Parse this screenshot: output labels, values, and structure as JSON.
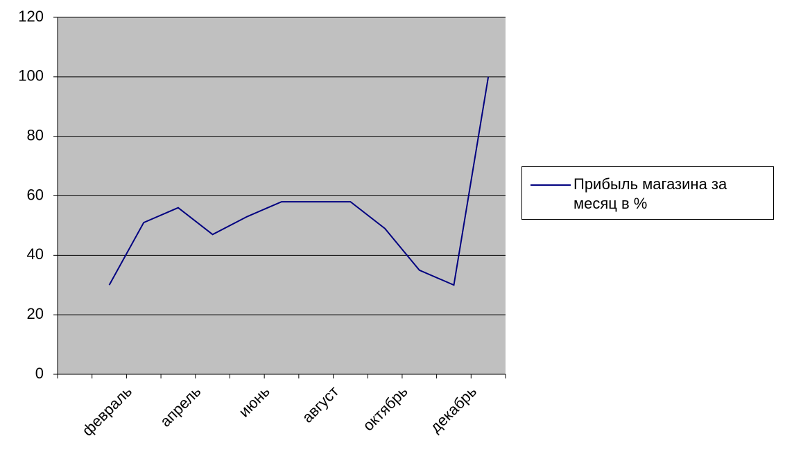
{
  "chart_data": {
    "type": "line",
    "categories": [
      null,
      "февраль",
      null,
      "апрель",
      null,
      "июнь",
      null,
      "август",
      null,
      "октябрь",
      null,
      "декабрь",
      null
    ],
    "series": [
      {
        "name": "Прибыль магазина за месяц в %",
        "color": "#000080",
        "values": [
          null,
          30,
          51,
          56,
          47,
          53,
          58,
          58,
          58,
          49,
          35,
          30,
          100
        ]
      }
    ],
    "ylim": [
      0,
      120
    ],
    "yticks": [
      0,
      20,
      40,
      60,
      80,
      100,
      120
    ],
    "grid": true,
    "legend": "right"
  }
}
